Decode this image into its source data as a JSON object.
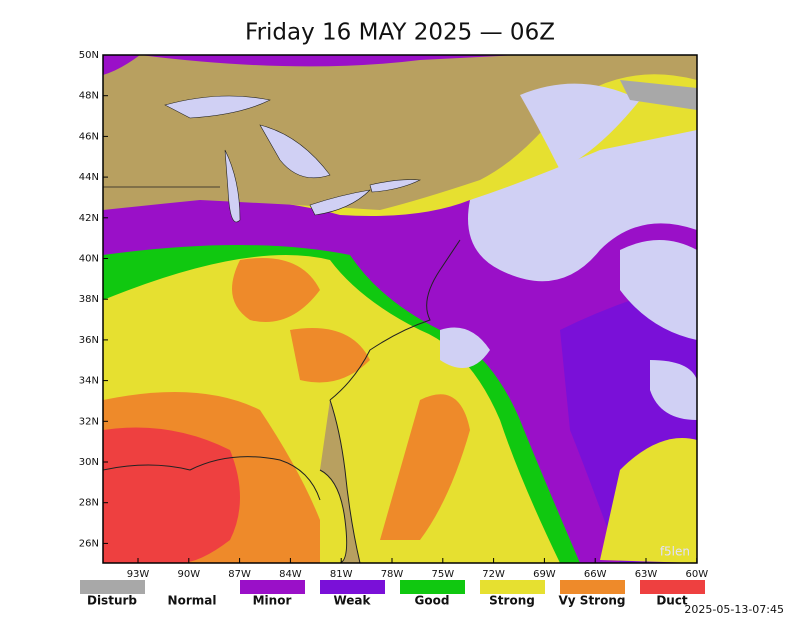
{
  "header": {
    "title": "Friday 16 MAY 2025 — 06Z"
  },
  "map": {
    "lat_labels": [
      "50N",
      "48N",
      "46N",
      "44N",
      "42N",
      "40N",
      "38N",
      "36N",
      "34N",
      "32N",
      "30N",
      "28N",
      "26N"
    ],
    "lon_labels": [
      "93W",
      "90W",
      "87W",
      "84W",
      "81W",
      "78W",
      "75W",
      "72W",
      "69W",
      "66W",
      "63W",
      "60W"
    ],
    "watermark": "f5len"
  },
  "legend": [
    {
      "label": "Disturb",
      "color": "#a8a8a8"
    },
    {
      "label": "Normal",
      "color": "#ffffff"
    },
    {
      "label": "Minor",
      "color": "#9a10c8"
    },
    {
      "label": "Weak",
      "color": "#7a10d8"
    },
    {
      "label": "Good",
      "color": "#10c810"
    },
    {
      "label": "Strong",
      "color": "#e6e030"
    },
    {
      "label": "Vy Strong",
      "color": "#ee8a2a"
    },
    {
      "label": "Duct",
      "color": "#ee4040"
    }
  ],
  "footer": {
    "timestamp": "2025-05-13-07:45"
  }
}
